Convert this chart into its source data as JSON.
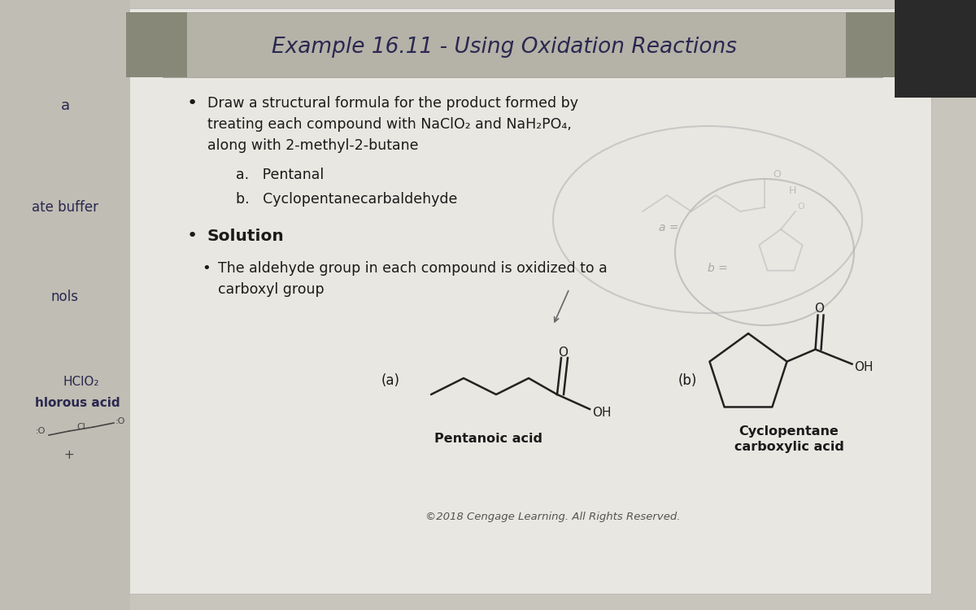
{
  "bg_outer": "#c8c5bc",
  "bg_slide": "#e8e6e0",
  "bg_left_strip": "#c0bdb4",
  "header_bg": "#b5b2a8",
  "header_text": "Example 16.11 - Using Oxidation Reactions",
  "header_fontsize": 19,
  "header_color": "#2a2850",
  "dark_corner": "#2a2a2a",
  "text_color": "#1a1a1a",
  "dark_text": "#2a2850",
  "bullet1_line1": "Draw a structural formula for the product formed by",
  "bullet1_line2": "treating each compound with NaClO₂ and NaH₂PO₄,",
  "bullet1_line3": "along with 2-methyl-2-butane",
  "sub_a": "a.   Pentanal",
  "sub_b": "b.   Cyclopentanecarbaldehyde",
  "bullet2": "Solution",
  "bullet3_line1": "The aldehyde group in each compound is oxidized to a",
  "bullet3_line2": "carboxyl group",
  "label_a": "(a)",
  "label_b": "(b)",
  "name_a": "Pentanoic acid",
  "name_b": "Cyclopentane\ncarboxylic acid",
  "left_text_a": "a",
  "left_text_buf": "ate buffer",
  "left_text_nols": "nols",
  "left_text_hclo": "HClO₂",
  "left_text_hlorous": "hlorous acid",
  "copyright": "©2018 Cengage Learning. All Rights Reserved.",
  "font_body": 12.5,
  "font_header": 19,
  "font_small": 9.5
}
